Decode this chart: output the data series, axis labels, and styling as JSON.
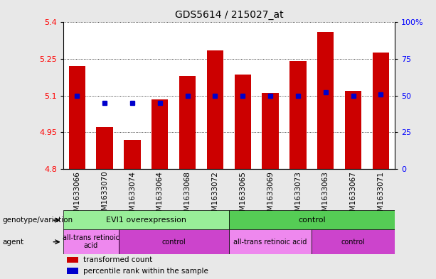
{
  "title": "GDS5614 / 215027_at",
  "samples": [
    "GSM1633066",
    "GSM1633070",
    "GSM1633074",
    "GSM1633064",
    "GSM1633068",
    "GSM1633072",
    "GSM1633065",
    "GSM1633069",
    "GSM1633073",
    "GSM1633063",
    "GSM1633067",
    "GSM1633071"
  ],
  "bar_values": [
    5.22,
    4.97,
    4.92,
    5.085,
    5.18,
    5.285,
    5.185,
    5.11,
    5.24,
    5.36,
    5.12,
    5.275
  ],
  "percentile_values": [
    50,
    45,
    45,
    45,
    50,
    50,
    50,
    50,
    50,
    52,
    50,
    51
  ],
  "ymin": 4.8,
  "ymax": 5.4,
  "yticks_left": [
    4.8,
    4.95,
    5.1,
    5.25,
    5.4
  ],
  "ytick_labels_left": [
    "4.8",
    "4.95",
    "5.1",
    "5.25",
    "5.4"
  ],
  "right_yticks": [
    0,
    25,
    50,
    75,
    100
  ],
  "right_ytick_labels": [
    "0",
    "25",
    "50",
    "75",
    "100%"
  ],
  "bar_color": "#cc0000",
  "percentile_color": "#0000cc",
  "plot_bg": "#ffffff",
  "fig_bg": "#e8e8e8",
  "xtick_bg": "#cccccc",
  "genotype_row": [
    {
      "label": "EVI1 overexpression",
      "start": 0,
      "end": 6,
      "color": "#99ee99"
    },
    {
      "label": "control",
      "start": 6,
      "end": 12,
      "color": "#55cc55"
    }
  ],
  "agent_row": [
    {
      "label": "all-trans retinoic\nacid",
      "start": 0,
      "end": 2,
      "color": "#ee88ee"
    },
    {
      "label": "control",
      "start": 2,
      "end": 6,
      "color": "#cc44cc"
    },
    {
      "label": "all-trans retinoic acid",
      "start": 6,
      "end": 9,
      "color": "#ee88ee"
    },
    {
      "label": "control",
      "start": 9,
      "end": 12,
      "color": "#cc44cc"
    }
  ],
  "legend_items": [
    {
      "color": "#cc0000",
      "label": "transformed count"
    },
    {
      "color": "#0000cc",
      "label": "percentile rank within the sample"
    }
  ],
  "left_labels": [
    {
      "text": "genotype/variation",
      "row": "geno"
    },
    {
      "text": "agent",
      "row": "agent"
    }
  ]
}
